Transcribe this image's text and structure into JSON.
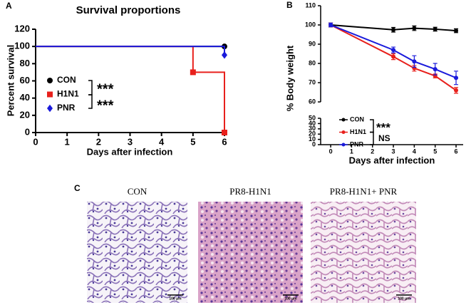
{
  "panels": {
    "a": "A",
    "b": "B",
    "c": "C"
  },
  "chart_data": [
    {
      "type": "step",
      "title": "Survival proportions",
      "x_label": "Days after infection",
      "y_label": "Percent survival",
      "xlim": [
        0,
        6
      ],
      "xticks": [
        0,
        1,
        2,
        3,
        4,
        5,
        6
      ],
      "ylim": [
        0,
        120
      ],
      "yticks": [
        0,
        20,
        40,
        60,
        80,
        100,
        120
      ],
      "series": [
        {
          "name": "CON",
          "color": "#000000",
          "marker": "circle",
          "x": [
            0,
            6
          ],
          "values": [
            100,
            100
          ]
        },
        {
          "name": "H1N1",
          "color": "#e8201c",
          "marker": "square",
          "x": [
            0,
            5,
            6
          ],
          "values": [
            100,
            70,
            0
          ]
        },
        {
          "name": "PNR",
          "color": "#1a1adb",
          "marker": "diamond",
          "x": [
            0,
            6
          ],
          "values": [
            100,
            90
          ]
        }
      ],
      "annotations": [
        "***",
        "***"
      ]
    },
    {
      "type": "line",
      "x_label": "Days after infection",
      "y_label": "% Body weight",
      "xlim": [
        -0.48,
        6.34
      ],
      "xticks": [
        0,
        1,
        2,
        3,
        4,
        5,
        6
      ],
      "ylim": [
        0,
        110
      ],
      "y_break": [
        50,
        60
      ],
      "yticks": [
        0,
        10,
        20,
        30,
        40,
        50,
        60,
        70,
        80,
        90,
        100,
        110
      ],
      "series": [
        {
          "name": "CON",
          "color": "#000000",
          "x": [
            0,
            3,
            4,
            5,
            6
          ],
          "values": [
            100,
            97.5,
            98.3,
            97.8,
            97
          ],
          "errors": [
            1,
            1.2,
            1.2,
            1,
            1
          ]
        },
        {
          "name": "H1N1",
          "color": "#e8201c",
          "x": [
            0,
            3,
            4,
            5,
            6
          ],
          "values": [
            100,
            83.5,
            77.5,
            73.5,
            66
          ],
          "errors": [
            1,
            1.5,
            1.5,
            1,
            1.5
          ]
        },
        {
          "name": "PNR",
          "color": "#1a1adb",
          "x": [
            0,
            3,
            4,
            5,
            6
          ],
          "values": [
            100,
            87,
            81,
            77,
            72.5
          ],
          "errors": [
            1,
            1.5,
            3,
            3,
            3.5
          ]
        }
      ],
      "annotations": [
        "***",
        "NS"
      ]
    }
  ],
  "images": [
    {
      "label": "CON",
      "scale_bar": "100 μm"
    },
    {
      "label": "PR8-H1N1",
      "scale_bar": "100 μm"
    },
    {
      "label": "PR8-H1N1+ PNR",
      "scale_bar": "100 μm"
    }
  ]
}
